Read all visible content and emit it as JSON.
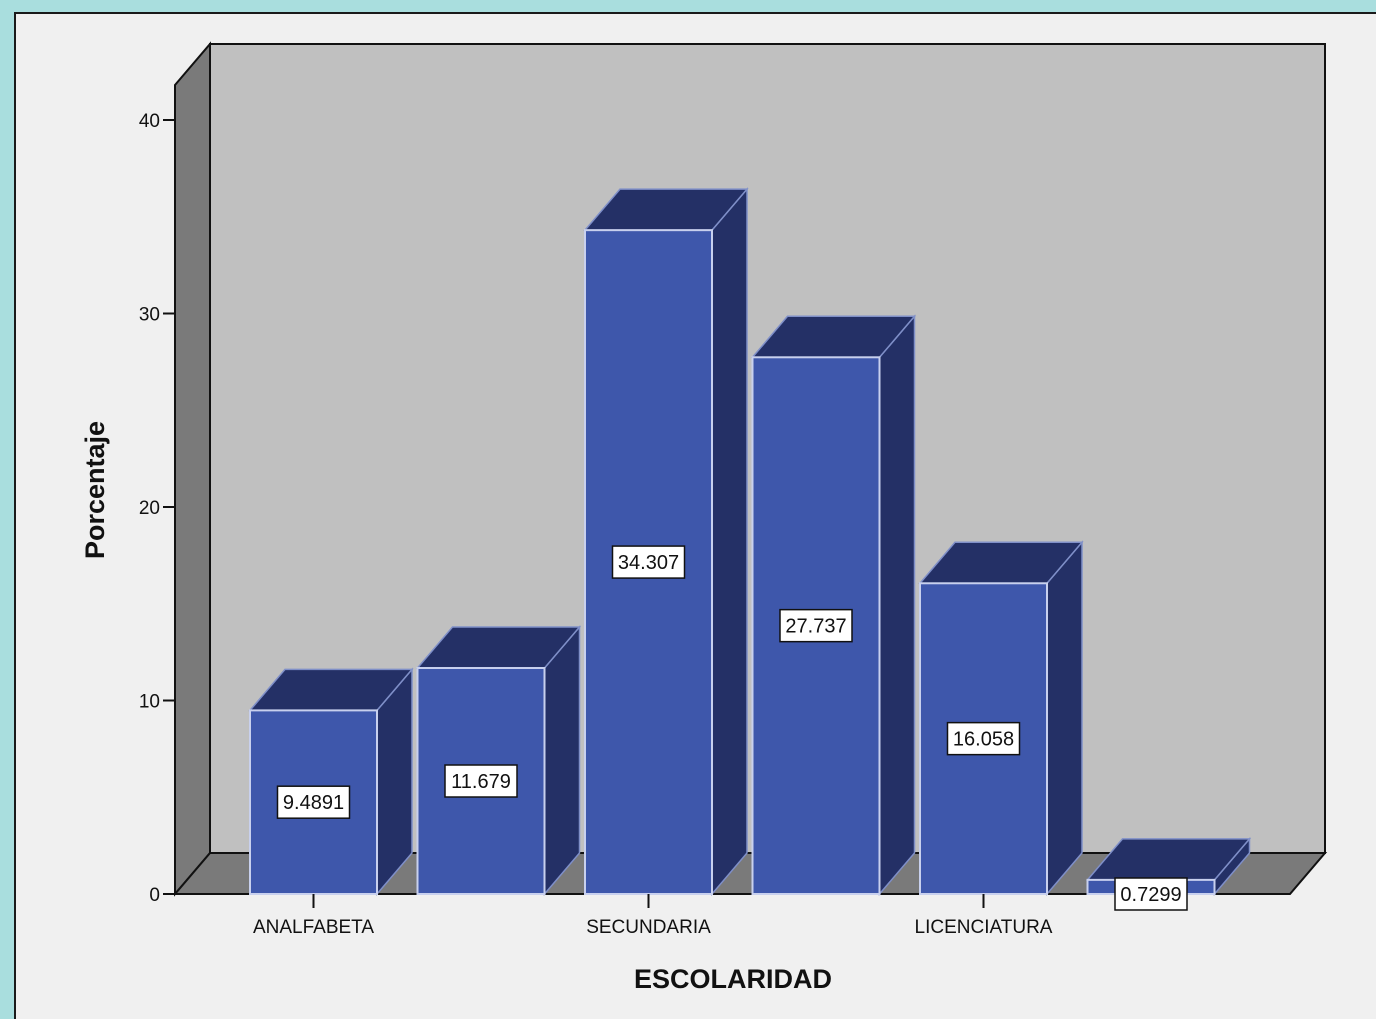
{
  "chart_data": {
    "type": "bar",
    "xlabel": "ESCOLARIDAD",
    "ylabel": "Porcentaje",
    "ylim": [
      0,
      40
    ],
    "yticks": [
      0,
      10,
      20,
      30,
      40
    ],
    "categories": [
      "ANALFABETA",
      "",
      "SECUNDARIA",
      "",
      "LICENCIATURA",
      ""
    ],
    "values": [
      9.4891,
      11.679,
      34.307,
      27.737,
      16.058,
      0.7299
    ],
    "data_labels": [
      "9.4891",
      "11.679",
      "34.307",
      "27.737",
      "16.058",
      "0.7299"
    ],
    "style": "3d",
    "grid": false,
    "colors": {
      "bar_front": "#3e57ab",
      "bar_top": "#243066",
      "bar_side": "#243066",
      "back_wall": "#c0c0c0",
      "side_wall": "#7a7a7a",
      "floor": "#7a7a7a",
      "background": "#f0f0f0",
      "window_border": "#a9dede"
    }
  }
}
